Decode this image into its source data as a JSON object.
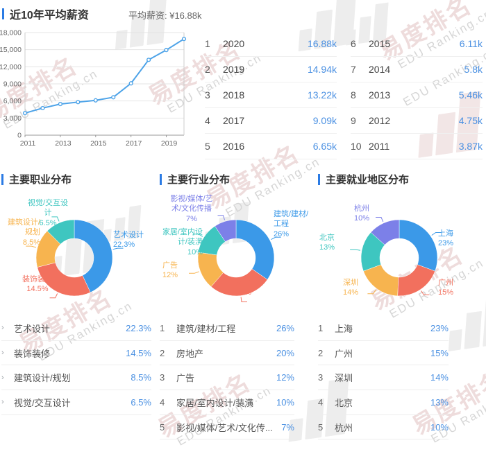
{
  "palette": {
    "blue": "#3b99e8",
    "red": "#f2705e",
    "orange": "#f7b44f",
    "teal": "#3ec6c0",
    "purple": "#7c80e8",
    "line_blue": "#4da3e8",
    "value_blue": "#4a90e2",
    "accent_bar": "#2b7be4"
  },
  "watermark": {
    "text_cn": "易度排名",
    "text_en": "EDU Ranking.cn"
  },
  "salary_section": {
    "title": "近10年平均薪资",
    "avg_label": "平均薪资: ¥16.88k"
  },
  "salary_table": {
    "left": [
      {
        "rank": "1",
        "year": "2020",
        "value": "16.88k"
      },
      {
        "rank": "2",
        "year": "2019",
        "value": "14.94k"
      },
      {
        "rank": "3",
        "year": "2018",
        "value": "13.22k"
      },
      {
        "rank": "4",
        "year": "2017",
        "value": "9.09k"
      },
      {
        "rank": "5",
        "year": "2016",
        "value": "6.65k"
      }
    ],
    "right": [
      {
        "rank": "6",
        "year": "2015",
        "value": "6.11k"
      },
      {
        "rank": "7",
        "year": "2014",
        "value": "5.8k"
      },
      {
        "rank": "8",
        "year": "2013",
        "value": "5.46k"
      },
      {
        "rank": "9",
        "year": "2012",
        "value": "4.75k"
      },
      {
        "rank": "10",
        "year": "2011",
        "value": "3.87k"
      }
    ]
  },
  "chart_data": [
    {
      "id": "salary-line",
      "type": "line",
      "title": "近10年平均薪资",
      "x": [
        2011,
        2012,
        2013,
        2014,
        2015,
        2016,
        2017,
        2018,
        2019,
        2020
      ],
      "values": [
        3870,
        4750,
        5460,
        5800,
        6110,
        6650,
        9090,
        13220,
        14940,
        16880
      ],
      "ylim": [
        0,
        18000
      ],
      "ytick_step": 3000,
      "ytick_labels": [
        "0",
        "3,000",
        "6,000",
        "9,000",
        "12,000",
        "15,000",
        "18,000"
      ],
      "xtick_labels": [
        "2011",
        "2013",
        "2015",
        "2017",
        "2019"
      ],
      "grid": true,
      "legend": "none"
    },
    {
      "id": "occupation-donut",
      "type": "pie",
      "title": "主要职业分布",
      "segments": [
        {
          "label": "艺术设计",
          "value": 22.3,
          "display": "22.3%",
          "color": "#3b99e8"
        },
        {
          "label": "装饰装修",
          "value": 14.5,
          "display": "14.5%",
          "color": "#f2705e"
        },
        {
          "label": "建筑设计/规划",
          "value": 8.5,
          "display": "8.5%",
          "color": "#f7b44f"
        },
        {
          "label": "视觉/交互设计",
          "value": 6.5,
          "display": "6.5%",
          "color": "#3ec6c0"
        }
      ]
    },
    {
      "id": "industry-donut",
      "type": "pie",
      "title": "主要行业分布",
      "segments": [
        {
          "label": "建筑/建材/工程",
          "value": 26,
          "display": "26%",
          "color": "#3b99e8"
        },
        {
          "label": "房地产",
          "value": 20,
          "display": "20%",
          "color": "#f2705e"
        },
        {
          "label": "广告",
          "value": 12,
          "display": "12%",
          "color": "#f7b44f"
        },
        {
          "label": "家居/室内设计/装潢",
          "value": 10,
          "display": "10%",
          "color": "#3ec6c0"
        },
        {
          "label": "影视/媒体/艺术/文化传播",
          "value": 7,
          "display": "7%",
          "color": "#7c80e8"
        }
      ]
    },
    {
      "id": "region-donut",
      "type": "pie",
      "title": "主要就业地区分布",
      "segments": [
        {
          "label": "上海",
          "value": 23,
          "display": "23%",
          "color": "#3b99e8"
        },
        {
          "label": "广州",
          "value": 15,
          "display": "15%",
          "color": "#f2705e"
        },
        {
          "label": "深圳",
          "value": 14,
          "display": "14%",
          "color": "#f7b44f"
        },
        {
          "label": "北京",
          "value": 13,
          "display": "13%",
          "color": "#3ec6c0"
        },
        {
          "label": "杭州",
          "value": 10,
          "display": "10%",
          "color": "#7c80e8"
        }
      ]
    }
  ],
  "sections": [
    {
      "title": "主要职业分布",
      "list_style": "chevron",
      "chevron": "〉",
      "rows": [
        {
          "name": "艺术设计",
          "value": "22.3%"
        },
        {
          "name": "装饰装修",
          "value": "14.5%"
        },
        {
          "name": "建筑设计/规划",
          "value": "8.5%"
        },
        {
          "name": "视觉/交互设计",
          "value": "6.5%"
        }
      ]
    },
    {
      "title": "主要行业分布",
      "list_style": "rank",
      "rows": [
        {
          "rank": "1",
          "name": "建筑/建材/工程",
          "value": "26%"
        },
        {
          "rank": "2",
          "name": "房地产",
          "value": "20%"
        },
        {
          "rank": "3",
          "name": "广告",
          "value": "12%"
        },
        {
          "rank": "4",
          "name": "家居/室内设计/装潢",
          "value": "10%"
        },
        {
          "rank": "5",
          "name": "影视/媒体/艺术/文化传...",
          "value": "7%"
        }
      ]
    },
    {
      "title": "主要就业地区分布",
      "list_style": "rank",
      "rows": [
        {
          "rank": "1",
          "name": "上海",
          "value": "23%"
        },
        {
          "rank": "2",
          "name": "广州",
          "value": "15%"
        },
        {
          "rank": "3",
          "name": "深圳",
          "value": "14%"
        },
        {
          "rank": "4",
          "name": "北京",
          "value": "13%"
        },
        {
          "rank": "5",
          "name": "杭州",
          "value": "10%"
        }
      ]
    }
  ]
}
